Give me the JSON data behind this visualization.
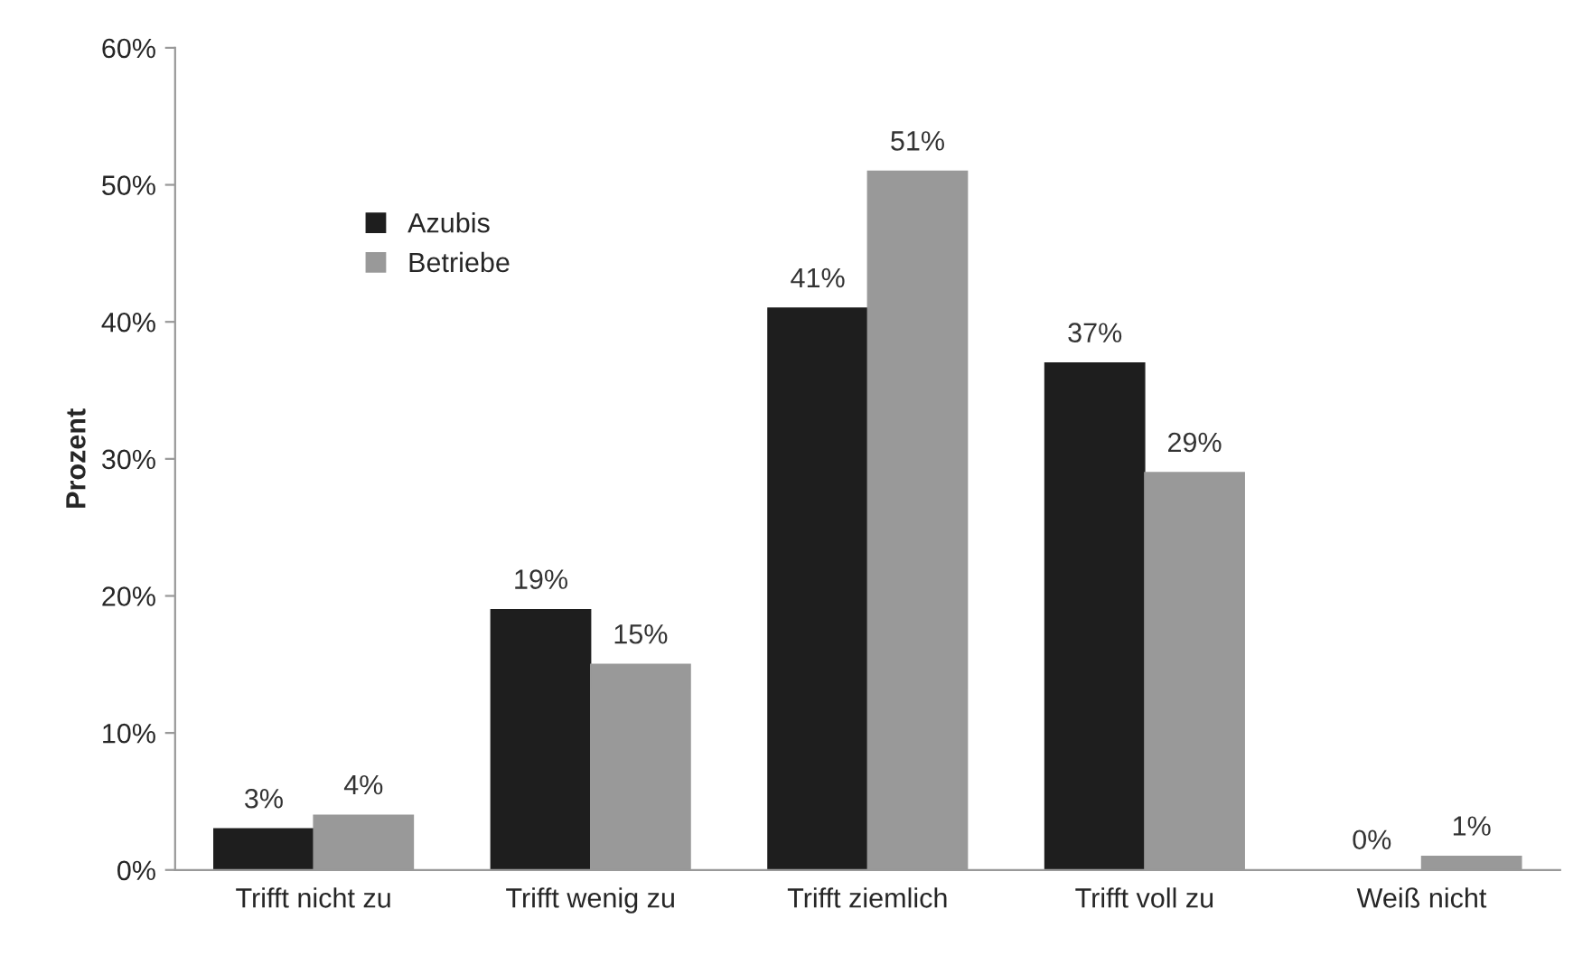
{
  "chart_data": {
    "type": "bar",
    "ylabel": "Prozent",
    "categories": [
      "Trifft nicht zu",
      "Trifft wenig zu",
      "Trifft ziemlich",
      "Trifft voll zu",
      "Weiß nicht"
    ],
    "series": [
      {
        "name": "Azubis",
        "color": "#1e1e1e",
        "values": [
          3,
          19,
          41,
          37,
          0
        ],
        "value_labels": [
          "3%",
          "19%",
          "41%",
          "37%",
          "0%"
        ]
      },
      {
        "name": "Betriebe",
        "color": "#999999",
        "values": [
          4,
          15,
          51,
          29,
          1
        ],
        "value_labels": [
          "4%",
          "15%",
          "51%",
          "29%",
          "1%"
        ]
      }
    ],
    "ylim": [
      0,
      60
    ],
    "yticks": [
      {
        "value": 0,
        "label": "0%"
      },
      {
        "value": 10,
        "label": "10%"
      },
      {
        "value": 20,
        "label": "20%"
      },
      {
        "value": 30,
        "label": "30%"
      },
      {
        "value": 40,
        "label": "40%"
      },
      {
        "value": 50,
        "label": "50%"
      },
      {
        "value": 60,
        "label": "60%"
      }
    ],
    "legend": "top left",
    "grid": false
  }
}
